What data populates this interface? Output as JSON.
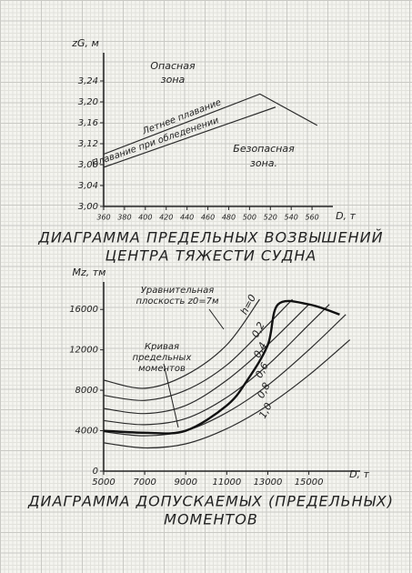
{
  "chart_data": [
    {
      "type": "line",
      "title": [
        "ДИАГРАММА ПРЕДЕЛЬНЫХ ВОЗВЫШЕНИЙ",
        "ЦЕНТРА ТЯЖЕСТИ СУДНА"
      ],
      "y_label": "zG, м",
      "x_label": "D, т",
      "xlim": [
        360,
        580
      ],
      "xticks": [
        360,
        380,
        400,
        420,
        440,
        460,
        480,
        500,
        520,
        540,
        560
      ],
      "ylim": [
        3.0,
        3.28
      ],
      "yticks": [
        {
          "value": 3.0,
          "label": "3,00"
        },
        {
          "value": 3.04,
          "label": "3,04"
        },
        {
          "value": 3.08,
          "label": "3,08"
        },
        {
          "value": 3.12,
          "label": "3,12"
        },
        {
          "value": 3.16,
          "label": "3,16"
        },
        {
          "value": 3.2,
          "label": "3,20"
        },
        {
          "value": 3.24,
          "label": "3,24"
        }
      ],
      "series": [
        {
          "name": "Летнее плавание",
          "color": "#2b2b2b",
          "x": [
            360,
            510,
            565
          ],
          "values": [
            3.1,
            3.215,
            3.155
          ]
        },
        {
          "name": "Плавание при обледенении",
          "color": "#2b2b2b",
          "x": [
            360,
            525
          ],
          "values": [
            3.075,
            3.19
          ]
        }
      ],
      "annotations": [
        "Опасная",
        "зона",
        "Безопасная",
        "зона."
      ]
    },
    {
      "type": "line",
      "title": [
        "ДИАГРАММА ДОПУСКАЕМЫХ (ПРЕДЕЛЬНЫХ)",
        "МОМЕНТОВ"
      ],
      "y_label": "Mz, тм",
      "x_label": "D, т",
      "xlim": [
        5000,
        17500
      ],
      "xticks": [
        5000,
        7000,
        9000,
        11000,
        13000,
        15000
      ],
      "ylim": [
        0,
        18000
      ],
      "yticks": [
        0,
        4000,
        8000,
        12000,
        16000
      ],
      "series": [
        {
          "name": "h=0",
          "color": "#2b2b2b",
          "x": [
            5000,
            7000,
            9000,
            11000,
            12600
          ],
          "values": [
            9000,
            8200,
            9500,
            12500,
            17000
          ]
        },
        {
          "name": "0,2",
          "color": "#2b2b2b",
          "x": [
            5000,
            7000,
            9000,
            11000,
            13000,
            14200
          ],
          "values": [
            7500,
            7000,
            8000,
            10500,
            14500,
            17000
          ]
        },
        {
          "name": "0,4",
          "color": "#2b2b2b",
          "x": [
            5000,
            7000,
            9000,
            11000,
            13000,
            15000
          ],
          "values": [
            6200,
            5700,
            6500,
            9000,
            12500,
            16500
          ]
        },
        {
          "name": "0,6",
          "color": "#2b2b2b",
          "x": [
            5000,
            7000,
            9000,
            11000,
            13000,
            15000,
            16000
          ],
          "values": [
            5000,
            4600,
            5200,
            7300,
            10500,
            14500,
            16500
          ]
        },
        {
          "name": "0,8",
          "color": "#2b2b2b",
          "x": [
            5000,
            7000,
            9000,
            11000,
            13000,
            15000,
            16800
          ],
          "values": [
            3900,
            3500,
            4000,
            5800,
            8500,
            12000,
            15500
          ]
        },
        {
          "name": "1,0",
          "color": "#2b2b2b",
          "x": [
            5000,
            7000,
            9000,
            11000,
            13000,
            15000,
            17000
          ],
          "values": [
            2800,
            2300,
            2700,
            4200,
            6500,
            9500,
            13000
          ]
        },
        {
          "name": "Кривая предельных моментов",
          "color": "#111111",
          "width": 2.4,
          "x": [
            5000,
            7000,
            9000,
            11000,
            12000,
            13000,
            13500,
            15000,
            16500
          ],
          "values": [
            4000,
            3800,
            4000,
            6500,
            9000,
            12500,
            16500,
            16500,
            15500
          ]
        }
      ],
      "annotations": [
        "Уравнительная плоскость z0=7м"
      ]
    }
  ]
}
